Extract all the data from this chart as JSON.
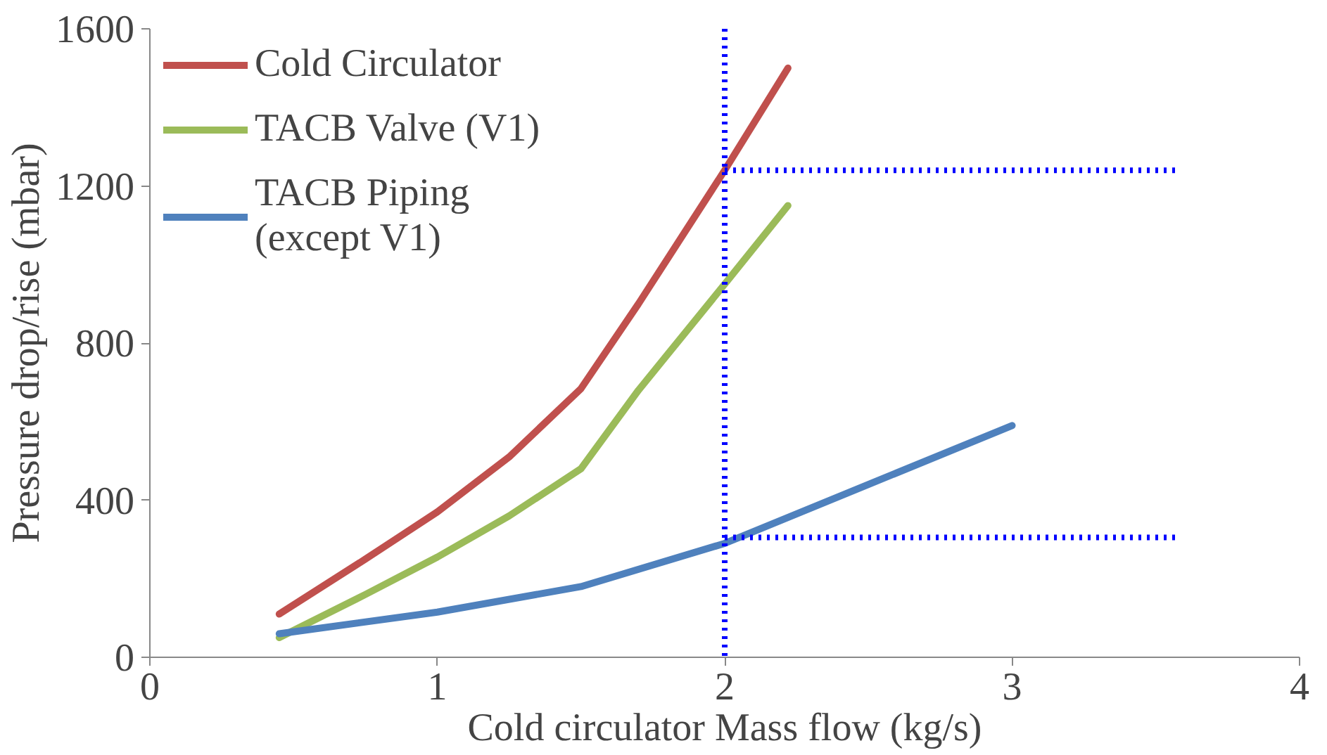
{
  "chart_data": {
    "type": "line",
    "xlabel": "Cold circulator Mass flow (kg/s)",
    "ylabel": "Pressure drop/rise (mbar)",
    "xlim": [
      0,
      4
    ],
    "xticks": [
      0,
      1,
      2,
      3,
      4
    ],
    "ylim": [
      0,
      1600
    ],
    "yticks": [
      0,
      400,
      800,
      1200,
      1600
    ],
    "grid": false,
    "legend": "top left",
    "marker": "none",
    "line_style": "solid",
    "series": [
      {
        "name": "Cold Circulator",
        "color": "#c0504d",
        "x": [
          0.45,
          0.75,
          1.0,
          1.25,
          1.5,
          1.7,
          2.0,
          2.22
        ],
        "values": [
          110,
          250,
          370,
          510,
          684,
          900,
          1240,
          1500
        ]
      },
      {
        "name": "TACB Valve (V1)",
        "color": "#9bbb59",
        "x": [
          0.45,
          0.75,
          1.0,
          1.25,
          1.5,
          1.7,
          2.0,
          2.22
        ],
        "values": [
          50,
          160,
          255,
          360,
          480,
          680,
          950,
          1150
        ]
      },
      {
        "name": "TACB Piping\n(except V1)",
        "color": "#4f81bd",
        "x": [
          0.45,
          1.0,
          1.5,
          2.0,
          2.5,
          3.0
        ],
        "values": [
          60,
          115,
          180,
          290,
          440,
          590
        ]
      },
      {
        "color": "#0000ff",
        "line_style": "dotted",
        "x": [
          2.0,
          3.57
        ],
        "values": [
          1240,
          1240
        ]
      },
      {
        "color": "#0000ff",
        "line_style": "dotted",
        "x": [
          2.0,
          3.57
        ],
        "values": [
          305,
          305
        ]
      }
    ],
    "ref_lines": [
      {
        "axis": "x",
        "value": 2,
        "color": "#0000ff",
        "line_style": "dotted"
      }
    ]
  }
}
